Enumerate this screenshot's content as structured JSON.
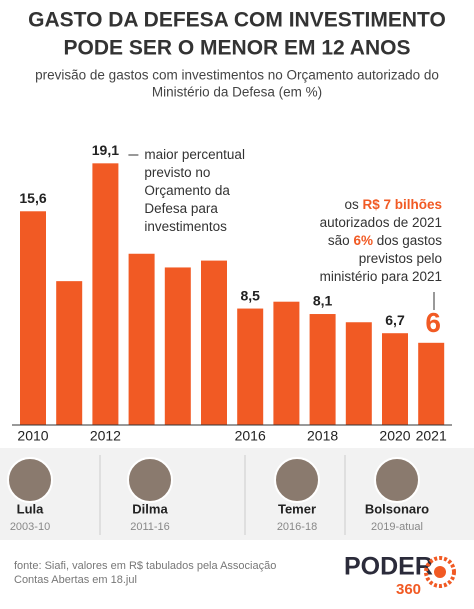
{
  "chart_data": {
    "type": "bar",
    "title": [
      "GASTO DA DEFESA COM INVESTIMENTO",
      "PODE SER O MENOR EM 12 ANOS"
    ],
    "subtitle": [
      "previsão de gastos com investimentos no Orçamento autorizado do",
      "Ministério da Defesa (em %)"
    ],
    "categories": [
      "2010",
      null,
      "2012",
      null,
      null,
      null,
      "2016",
      null,
      "2018",
      null,
      "2020",
      "2021"
    ],
    "values": [
      15.6,
      10.5,
      19.1,
      12.5,
      11.5,
      12,
      8.5,
      9,
      8.1,
      7.5,
      6.7,
      6
    ],
    "value_labels": [
      "15,6",
      null,
      "19,1",
      null,
      null,
      null,
      "8,5",
      null,
      "8,1",
      null,
      "6,7",
      "6"
    ],
    "color": "#f15a24",
    "highlight_color": "#f15a24",
    "ylim": [
      0,
      20
    ],
    "annotations": [
      {
        "category": 2,
        "lines": [
          [
            {
              "text": "maior percentual",
              "highlight": false
            }
          ],
          [
            {
              "text": "previsto no",
              "highlight": false
            }
          ],
          [
            {
              "text": "Orçamento da",
              "highlight": false
            }
          ],
          [
            {
              "text": "Defesa para",
              "highlight": false
            }
          ],
          [
            {
              "text": "investimentos",
              "highlight": false
            }
          ]
        ]
      },
      {
        "category": 11,
        "lines": [
          [
            {
              "text": "os ",
              "highlight": false
            },
            {
              "text": "R$ 7 bilhões",
              "highlight": true
            }
          ],
          [
            {
              "text": "autorizados de 2021",
              "highlight": false
            }
          ],
          [
            {
              "text": "são ",
              "highlight": false
            },
            {
              "text": "6%",
              "highlight": true
            },
            {
              "text": " dos gastos",
              "highlight": false
            }
          ],
          [
            {
              "text": "previstos pelo",
              "highlight": false
            }
          ],
          [
            {
              "text": "ministério para 2021",
              "highlight": false
            }
          ]
        ]
      }
    ]
  },
  "presidents": [
    {
      "name": "Lula",
      "period": "2003-10"
    },
    {
      "name": "Dilma",
      "period": "2011-16"
    },
    {
      "name": "Temer",
      "period": "2016-18"
    },
    {
      "name": "Bolsonaro",
      "period": "2019-atual"
    }
  ],
  "footer": {
    "source": [
      "fonte: Siafi, valores em R$ tabulados pela Associação",
      "Contas Abertas em 18.jul"
    ],
    "logo": [
      "PODER",
      "360"
    ]
  }
}
